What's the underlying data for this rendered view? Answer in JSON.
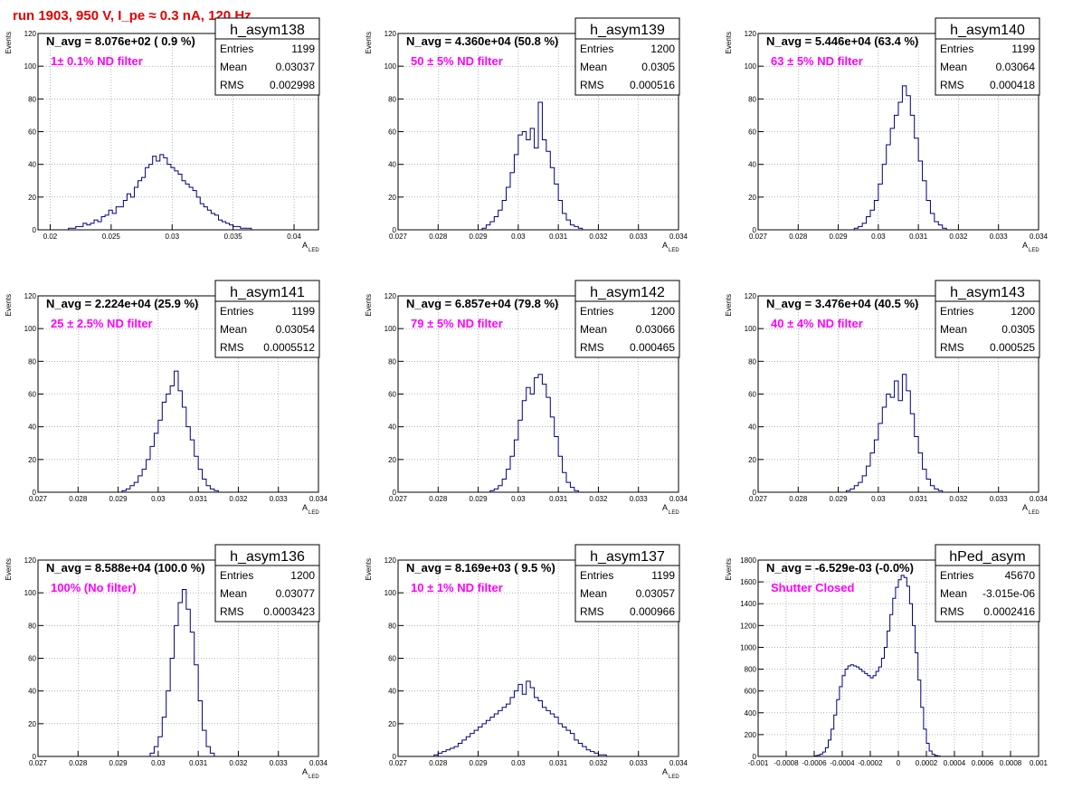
{
  "run_title": "run 1903,   950 V, I_pe ≈ 0.3 nA, 120 Hz",
  "stat_labels": {
    "entries": "Entries",
    "mean": "Mean",
    "rms": "RMS"
  },
  "colors": {
    "histogram": "#000080",
    "annotation": "#ff00ff",
    "title": "#e60000",
    "grid": "#888888"
  },
  "chart_data": [
    {
      "type": "histogram",
      "name": "h_asym138",
      "navg": "N_avg = 8.076e+02 ( 0.9 %)",
      "note": "1± 0.1% ND filter",
      "entries": "1199",
      "mean": "0.03037",
      "rms": "0.002998",
      "xlabel": "A",
      "xlabel_sub": "LED",
      "ylabel": "Events",
      "xlim": [
        0.019,
        0.042
      ],
      "ylim": [
        0,
        120
      ],
      "xticks": [
        0.02,
        0.025,
        0.03,
        0.035,
        0.04
      ],
      "xtick_labels": [
        "0.02",
        "0.025",
        "0.03",
        "0.035",
        "0.04"
      ],
      "yticks": [
        0,
        20,
        40,
        60,
        80,
        100,
        120
      ],
      "bin_start": 0.0215,
      "bin_width": 0.0003,
      "values": [
        1,
        1,
        2,
        2,
        4,
        3,
        4,
        6,
        5,
        8,
        9,
        12,
        10,
        14,
        14,
        18,
        22,
        20,
        26,
        30,
        32,
        38,
        40,
        45,
        42,
        46,
        44,
        40,
        38,
        36,
        34,
        30,
        28,
        26,
        24,
        20,
        16,
        14,
        12,
        10,
        9,
        6,
        5,
        4,
        3,
        2,
        2,
        1,
        1,
        1
      ]
    },
    {
      "type": "histogram",
      "name": "h_asym139",
      "navg": "N_avg = 4.360e+04 (50.8 %)",
      "note": "50 ± 5% ND filter",
      "entries": "1200",
      "mean": "0.0305",
      "rms": "0.000516",
      "xlabel": "A",
      "xlabel_sub": "LED",
      "ylabel": "Events",
      "xlim": [
        0.027,
        0.034
      ],
      "ylim": [
        0,
        120
      ],
      "xticks": [
        0.027,
        0.028,
        0.029,
        0.03,
        0.031,
        0.032,
        0.033,
        0.034
      ],
      "xtick_labels": [
        "0.027",
        "0.028",
        "0.029",
        "0.03",
        "0.031",
        "0.032",
        "0.033",
        "0.034"
      ],
      "yticks": [
        0,
        20,
        40,
        60,
        80,
        100,
        120
      ],
      "bin_start": 0.0291,
      "bin_width": 0.0001,
      "values": [
        1,
        3,
        5,
        8,
        12,
        18,
        26,
        35,
        46,
        58,
        60,
        55,
        62,
        50,
        78,
        55,
        48,
        38,
        28,
        18,
        10,
        6,
        3,
        2,
        1
      ]
    },
    {
      "type": "histogram",
      "name": "h_asym140",
      "navg": "N_avg = 5.446e+04 (63.4 %)",
      "note": "63 ± 5% ND filter",
      "entries": "1199",
      "mean": "0.03064",
      "rms": "0.000418",
      "xlabel": "A",
      "xlabel_sub": "LED",
      "ylabel": "Events",
      "xlim": [
        0.027,
        0.034
      ],
      "ylim": [
        0,
        120
      ],
      "xticks": [
        0.027,
        0.028,
        0.029,
        0.03,
        0.031,
        0.032,
        0.033,
        0.034
      ],
      "xtick_labels": [
        "0.027",
        "0.028",
        "0.029",
        "0.03",
        "0.031",
        "0.032",
        "0.033",
        "0.034"
      ],
      "yticks": [
        0,
        20,
        40,
        60,
        80,
        100,
        120
      ],
      "bin_start": 0.0294,
      "bin_width": 0.0001,
      "values": [
        1,
        2,
        4,
        8,
        12,
        18,
        28,
        40,
        52,
        62,
        70,
        78,
        88,
        82,
        70,
        56,
        42,
        30,
        18,
        10,
        5,
        3,
        1
      ]
    },
    {
      "type": "histogram",
      "name": "h_asym141",
      "navg": "N_avg = 2.224e+04 (25.9 %)",
      "note": "25 ± 2.5% ND filter",
      "entries": "1199",
      "mean": "0.03054",
      "rms": "0.0005512",
      "xlabel": "A",
      "xlabel_sub": "LED",
      "ylabel": "Events",
      "xlim": [
        0.027,
        0.034
      ],
      "ylim": [
        0,
        120
      ],
      "xticks": [
        0.027,
        0.028,
        0.029,
        0.03,
        0.031,
        0.032,
        0.033,
        0.034
      ],
      "xtick_labels": [
        "0.027",
        "0.028",
        "0.029",
        "0.03",
        "0.031",
        "0.032",
        "0.033",
        "0.034"
      ],
      "yticks": [
        0,
        20,
        40,
        60,
        80,
        100,
        120
      ],
      "bin_start": 0.0291,
      "bin_width": 0.0001,
      "values": [
        1,
        2,
        4,
        6,
        10,
        14,
        20,
        28,
        36,
        44,
        55,
        60,
        65,
        74,
        62,
        52,
        40,
        32,
        22,
        14,
        8,
        4,
        2,
        1
      ]
    },
    {
      "type": "histogram",
      "name": "h_asym142",
      "navg": "N_avg = 6.857e+04 (79.8 %)",
      "note": "79 ± 5% ND filter",
      "entries": "1200",
      "mean": "0.03066",
      "rms": "0.000465",
      "xlabel": "A",
      "xlabel_sub": "LED",
      "ylabel": "Events",
      "xlim": [
        0.027,
        0.034
      ],
      "ylim": [
        0,
        120
      ],
      "xticks": [
        0.027,
        0.028,
        0.029,
        0.03,
        0.031,
        0.032,
        0.033,
        0.034
      ],
      "xtick_labels": [
        "0.027",
        "0.028",
        "0.029",
        "0.03",
        "0.031",
        "0.032",
        "0.033",
        "0.034"
      ],
      "yticks": [
        0,
        20,
        40,
        60,
        80,
        100,
        120
      ],
      "bin_start": 0.0293,
      "bin_width": 0.0001,
      "values": [
        1,
        2,
        4,
        8,
        14,
        22,
        32,
        44,
        56,
        64,
        60,
        70,
        72,
        66,
        58,
        46,
        34,
        22,
        12,
        6,
        3,
        1
      ]
    },
    {
      "type": "histogram",
      "name": "h_asym143",
      "navg": "N_avg = 3.476e+04 (40.5 %)",
      "note": "40 ± 4% ND filter",
      "entries": "1200",
      "mean": "0.0305",
      "rms": "0.000525",
      "xlabel": "A",
      "xlabel_sub": "LED",
      "ylabel": "Events",
      "xlim": [
        0.027,
        0.034
      ],
      "ylim": [
        0,
        120
      ],
      "xticks": [
        0.027,
        0.028,
        0.029,
        0.03,
        0.031,
        0.032,
        0.033,
        0.034
      ],
      "xtick_labels": [
        "0.027",
        "0.028",
        "0.029",
        "0.03",
        "0.031",
        "0.032",
        "0.033",
        "0.034"
      ],
      "yticks": [
        0,
        20,
        40,
        60,
        80,
        100,
        120
      ],
      "bin_start": 0.0292,
      "bin_width": 0.0001,
      "values": [
        1,
        2,
        4,
        6,
        10,
        16,
        24,
        32,
        42,
        52,
        60,
        58,
        68,
        56,
        72,
        62,
        48,
        34,
        24,
        14,
        8,
        4,
        2,
        1
      ]
    },
    {
      "type": "histogram",
      "name": "h_asym136",
      "navg": "N_avg = 8.588e+04 (100.0 %)",
      "note": "100% (No filter)",
      "entries": "1200",
      "mean": "0.03077",
      "rms": "0.0003423",
      "xlabel": "A",
      "xlabel_sub": "LED",
      "ylabel": "Events",
      "xlim": [
        0.027,
        0.034
      ],
      "ylim": [
        0,
        120
      ],
      "xticks": [
        0.027,
        0.028,
        0.029,
        0.03,
        0.031,
        0.032,
        0.033,
        0.034
      ],
      "xtick_labels": [
        "0.027",
        "0.028",
        "0.029",
        "0.03",
        "0.031",
        "0.032",
        "0.033",
        "0.034"
      ],
      "yticks": [
        0,
        20,
        40,
        60,
        80,
        100,
        120
      ],
      "bin_start": 0.0298,
      "bin_width": 0.0001,
      "values": [
        2,
        6,
        12,
        24,
        40,
        60,
        80,
        94,
        102,
        90,
        76,
        56,
        34,
        16,
        6,
        2
      ]
    },
    {
      "type": "histogram",
      "name": "h_asym137",
      "navg": "N_avg = 8.169e+03 ( 9.5 %)",
      "note": "10 ± 1% ND filter",
      "entries": "1199",
      "mean": "0.03057",
      "rms": "0.000966",
      "xlabel": "A",
      "xlabel_sub": "LED",
      "ylabel": "Events",
      "xlim": [
        0.027,
        0.034
      ],
      "ylim": [
        0,
        120
      ],
      "xticks": [
        0.027,
        0.028,
        0.029,
        0.03,
        0.031,
        0.032,
        0.033,
        0.034
      ],
      "xtick_labels": [
        "0.027",
        "0.028",
        "0.029",
        "0.03",
        "0.031",
        "0.032",
        "0.033",
        "0.034"
      ],
      "yticks": [
        0,
        20,
        40,
        60,
        80,
        100,
        120
      ],
      "bin_start": 0.0279,
      "bin_width": 0.0001,
      "values": [
        1,
        2,
        3,
        4,
        5,
        6,
        8,
        10,
        12,
        14,
        16,
        18,
        20,
        22,
        24,
        26,
        28,
        30,
        32,
        36,
        40,
        44,
        38,
        46,
        42,
        36,
        34,
        30,
        28,
        26,
        24,
        20,
        18,
        16,
        14,
        10,
        8,
        6,
        4,
        3,
        2,
        1,
        1
      ]
    },
    {
      "type": "histogram",
      "name": "hPed_asym",
      "navg": "N_avg = -6.529e-03 (-0.0%)",
      "note": "Shutter Closed",
      "entries": "45670",
      "mean": "-3.015e-06",
      "rms": "0.0002416",
      "xlabel": "",
      "xlabel_sub": "",
      "ylabel": "Events",
      "xlim": [
        -0.001,
        0.001
      ],
      "ylim": [
        0,
        1800
      ],
      "xticks": [
        -0.001,
        -0.0008,
        -0.0006,
        -0.0004,
        -0.0002,
        0,
        0.0002,
        0.0004,
        0.0006,
        0.0008,
        0.001
      ],
      "xtick_labels": [
        "-0.001",
        "-0.0008",
        "-0.0006",
        "-0.0004",
        "-0.0002",
        "0",
        "0.0002",
        "0.0004",
        "0.0006",
        "0.0008",
        "0.001"
      ],
      "yticks": [
        0,
        200,
        400,
        600,
        800,
        1000,
        1200,
        1400,
        1600,
        1800
      ],
      "bin_start": -0.0006,
      "bin_width": 2e-05,
      "values": [
        5,
        10,
        20,
        40,
        80,
        150,
        250,
        380,
        520,
        640,
        740,
        800,
        830,
        840,
        830,
        820,
        800,
        780,
        760,
        740,
        720,
        740,
        780,
        820,
        900,
        1000,
        1150,
        1300,
        1450,
        1550,
        1620,
        1660,
        1640,
        1560,
        1400,
        1200,
        950,
        700,
        450,
        250,
        120,
        50,
        20,
        8,
        3
      ]
    }
  ]
}
